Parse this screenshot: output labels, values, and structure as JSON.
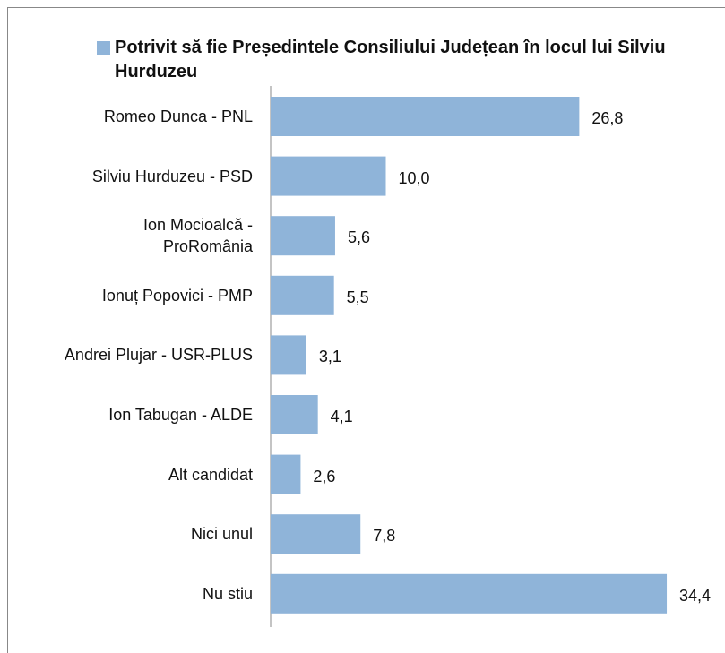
{
  "chart_data": {
    "type": "bar",
    "orientation": "horizontal",
    "series": [
      {
        "name": "Potrivit să fie Președintele Consiliului Județean în locul lui Silviu Hurduzeu",
        "color": "#8fb4d9",
        "values": [
          26.8,
          10.0,
          5.6,
          5.5,
          3.1,
          4.1,
          2.6,
          7.8,
          34.4
        ],
        "value_labels": [
          "26,8",
          "10,0",
          "5,6",
          "5,5",
          "3,1",
          "4,1",
          "2,6",
          "7,8",
          "34,4"
        ]
      }
    ],
    "categories": [
      "Romeo Dunca - PNL",
      "Silviu Hurduzeu - PSD",
      "Ion Mocioalcă - ProRomânia",
      "Ionuț Popovici - PMP",
      "Andrei Plujar - USR-PLUS",
      "Ion Tabugan - ALDE",
      "Alt candidat",
      "Nici unul",
      "Nu stiu"
    ]
  }
}
